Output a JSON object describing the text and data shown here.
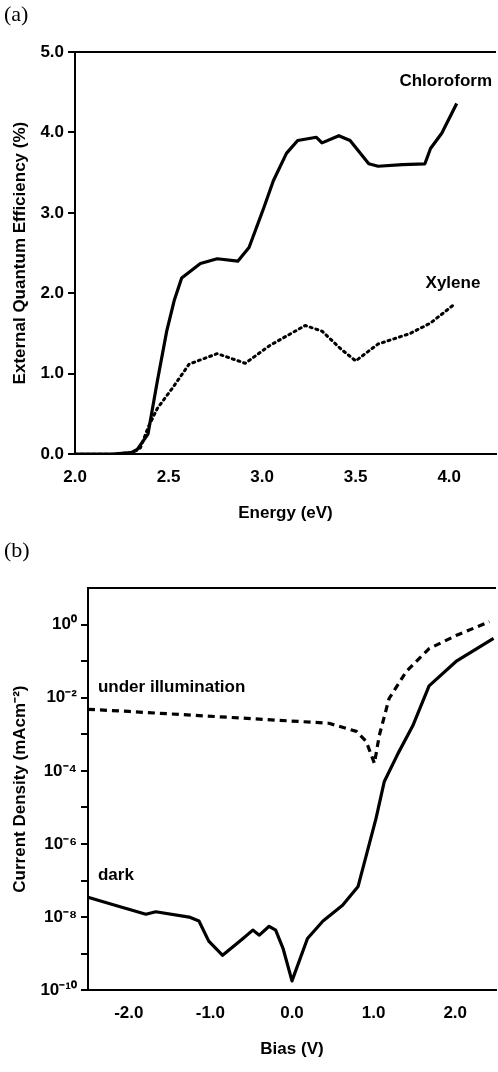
{
  "chart_data": [
    {
      "type": "line",
      "title": "(a)",
      "xlabel": "Energy (eV)",
      "ylabel": "External Quantum Efficiency (%)",
      "xlim": [
        2.0,
        4.25
      ],
      "ylim": [
        0,
        5.0
      ],
      "xticks": [
        {
          "value": 2.0,
          "label": "2.0"
        },
        {
          "value": 2.5,
          "label": "2.5"
        },
        {
          "value": 3.0,
          "label": "3.0"
        },
        {
          "value": 3.5,
          "label": "3.5"
        },
        {
          "value": 4.0,
          "label": "4.0"
        }
      ],
      "yticks": [
        {
          "value": 0,
          "label": "0.0"
        },
        {
          "value": 1,
          "label": "1.0"
        },
        {
          "value": 2,
          "label": "2.0"
        },
        {
          "value": 3,
          "label": "3.0"
        },
        {
          "value": 4,
          "label": "4.0"
        },
        {
          "value": 5,
          "label": "5.0"
        }
      ],
      "series": [
        {
          "name": "Chloroform",
          "color": "#000000",
          "line_style": "solid",
          "x": [
            2.0,
            2.2,
            2.3,
            2.33,
            2.39,
            2.44,
            2.49,
            2.53,
            2.57,
            2.67,
            2.76,
            2.87,
            2.93,
            3.01,
            3.06,
            3.13,
            3.19,
            3.29,
            3.32,
            3.41,
            3.47,
            3.57,
            3.62,
            3.75,
            3.87,
            3.9,
            3.96,
            4.04
          ],
          "values": [
            0,
            0,
            0.02,
            0.05,
            0.25,
            0.91,
            1.53,
            1.91,
            2.19,
            2.37,
            2.43,
            2.4,
            2.57,
            3.07,
            3.4,
            3.74,
            3.9,
            3.94,
            3.87,
            3.96,
            3.9,
            3.61,
            3.58,
            3.6,
            3.61,
            3.8,
            3.99,
            4.36
          ]
        },
        {
          "name": "Xylene",
          "color": "#000000",
          "line_style": "dotted",
          "x": [
            2.0,
            2.2,
            2.3,
            2.35,
            2.39,
            2.44,
            2.52,
            2.61,
            2.76,
            2.91,
            3.04,
            3.23,
            3.32,
            3.42,
            3.5,
            3.62,
            3.79,
            3.9,
            4.02
          ],
          "values": [
            0,
            0,
            0.02,
            0.08,
            0.33,
            0.57,
            0.82,
            1.12,
            1.25,
            1.13,
            1.35,
            1.6,
            1.53,
            1.31,
            1.16,
            1.37,
            1.5,
            1.63,
            1.85
          ]
        }
      ],
      "grid": false
    },
    {
      "type": "line",
      "title": "(b)",
      "xlabel": "Bias (V)",
      "ylabel": "Current Density (mAcm⁻²)",
      "log": "y",
      "xlim": [
        -2.5,
        2.5
      ],
      "ylim": [
        1e-10,
        10
      ],
      "xticks": [
        {
          "value": -2,
          "label": "-2.0"
        },
        {
          "value": -1,
          "label": "-1.0"
        },
        {
          "value": 0,
          "label": "0.0"
        },
        {
          "value": 1,
          "label": "1.0"
        },
        {
          "value": 2,
          "label": "2.0"
        }
      ],
      "yticks": [
        {
          "value": 1e-10,
          "label": "10⁻¹⁰"
        },
        {
          "value": 1e-09,
          "label": null
        },
        {
          "value": 1e-08,
          "label": "10⁻⁸"
        },
        {
          "value": 1e-07,
          "label": null
        },
        {
          "value": 1e-06,
          "label": "10⁻⁶"
        },
        {
          "value": 1e-05,
          "label": null
        },
        {
          "value": 0.0001,
          "label": "10⁻⁴"
        },
        {
          "value": 0.001,
          "label": null
        },
        {
          "value": 0.01,
          "label": "10⁻²"
        },
        {
          "value": 0.1,
          "label": null
        },
        {
          "value": 1,
          "label": "10⁰"
        }
      ],
      "series": [
        {
          "name": "under illumination",
          "color": "#000000",
          "line_style": "dashed",
          "x": [
            -2.5,
            -2.0,
            -0.77,
            0.45,
            0.79,
            0.91,
            1.01,
            1.07,
            1.19,
            1.4,
            1.68,
            2.01,
            2.42
          ],
          "values": [
            0.0048,
            0.0042,
            0.0029,
            0.002,
            0.0012,
            0.00063,
            0.00016,
            0.00093,
            0.0095,
            0.052,
            0.22,
            0.5,
            1.2
          ]
        },
        {
          "name": "dark",
          "color": "#000000",
          "line_style": "solid",
          "x": [
            -2.5,
            -2.2,
            -1.79,
            -1.67,
            -1.26,
            -1.14,
            -1.02,
            -0.85,
            -0.6,
            -0.48,
            -0.4,
            -0.28,
            -0.2,
            -0.11,
            0.0,
            0.19,
            0.38,
            0.62,
            0.81,
            1.03,
            1.13,
            1.3,
            1.48,
            1.68,
            2.01,
            2.47
          ],
          "values": [
            3.5e-08,
            2.2e-08,
            1.2e-08,
            1.4e-08,
            1e-08,
            7.8e-09,
            2.2e-09,
            9e-10,
            2.6e-09,
            4.4e-09,
            3.2e-09,
            5.6e-09,
            4.4e-09,
            1.4e-09,
            1.8e-10,
            2.6e-09,
            7.8e-09,
            2.1e-08,
            6.9e-08,
            5e-06,
            5e-05,
            0.0003,
            0.0017,
            0.021,
            0.098,
            0.42
          ]
        }
      ],
      "grid": false
    }
  ]
}
